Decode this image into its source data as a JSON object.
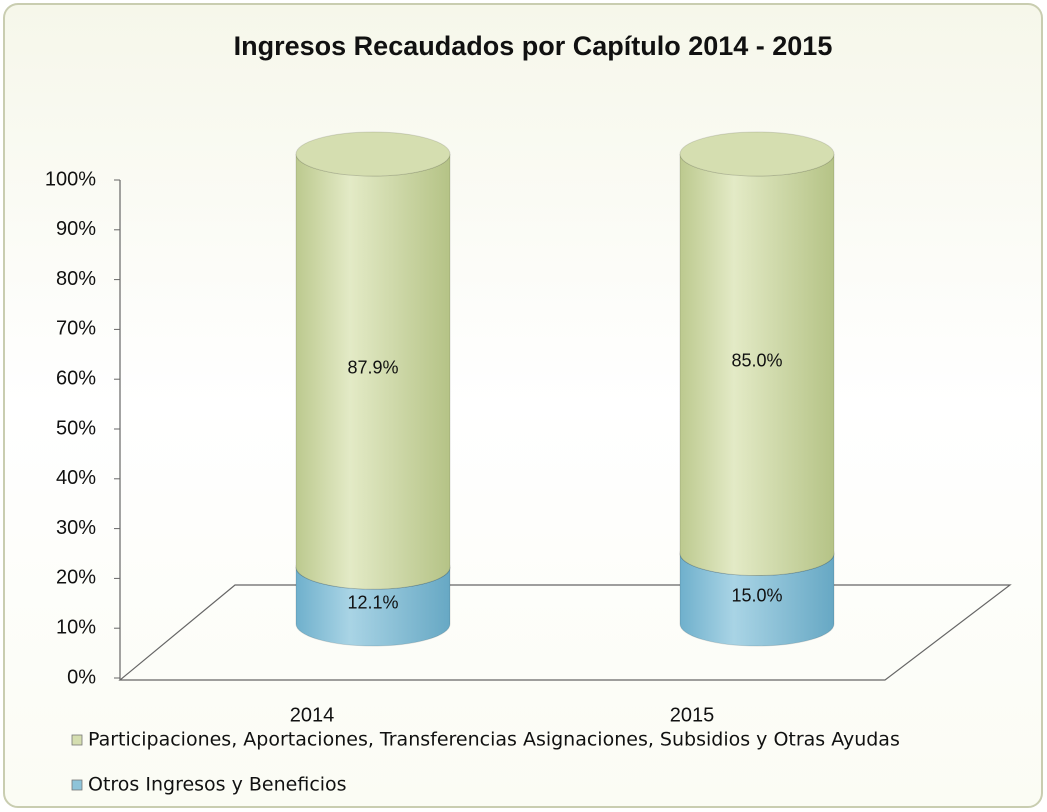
{
  "chart_data": {
    "type": "stacked_cylinder",
    "title": "Ingresos Recaudados por Capítulo 2014 - 2015",
    "categories": [
      "2014",
      "2015"
    ],
    "series": [
      {
        "name": "Participaciones, Aportaciones, Transferencias Asignaciones, Subsidios y Otras Ayudas",
        "color": "#d5deb0",
        "values": [
          87.9,
          85.0
        ],
        "value_labels": [
          "87.9%",
          "85.0%"
        ]
      },
      {
        "name": "Otros Ingresos y Beneficios",
        "color": "#8ec4d9",
        "values": [
          12.1,
          15.0
        ],
        "value_labels": [
          "12.1%",
          "15.0%"
        ]
      }
    ],
    "ylim": [
      0,
      100
    ],
    "yticks": [
      {
        "value": 0,
        "label": "0%"
      },
      {
        "value": 10,
        "label": "10%"
      },
      {
        "value": 20,
        "label": "20%"
      },
      {
        "value": 30,
        "label": "30%"
      },
      {
        "value": 40,
        "label": "40%"
      },
      {
        "value": 50,
        "label": "50%"
      },
      {
        "value": 60,
        "label": "60%"
      },
      {
        "value": 70,
        "label": "70%"
      },
      {
        "value": 80,
        "label": "80%"
      },
      {
        "value": 90,
        "label": "90%"
      },
      {
        "value": 100,
        "label": "100%"
      }
    ],
    "legend": "bottom"
  }
}
